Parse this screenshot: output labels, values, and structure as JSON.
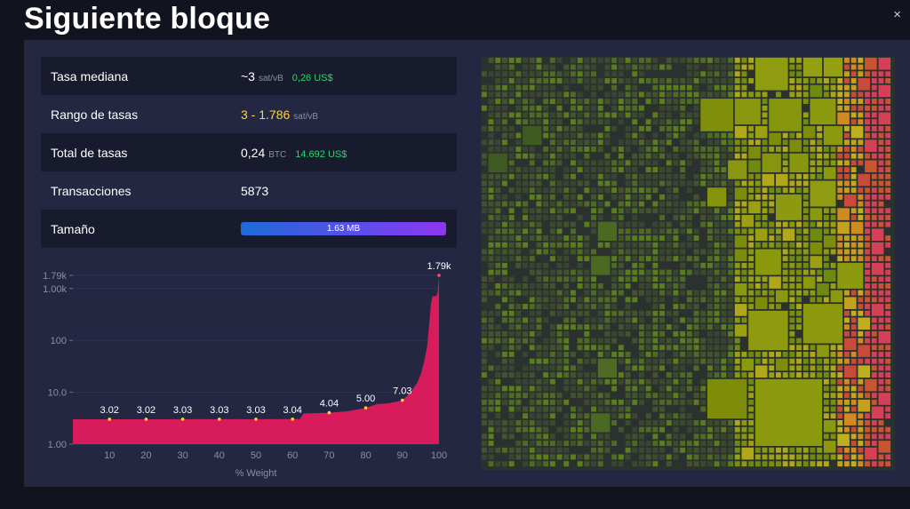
{
  "header": {
    "title": "Siguiente bloque",
    "close_glyph": "×"
  },
  "stats": {
    "median_fee": {
      "label": "Tasa mediana",
      "value": "~3",
      "unit": "sat/vB",
      "fiat": "0,26 US$"
    },
    "fee_range": {
      "label": "Rango de tasas",
      "value": "3 - 1.786",
      "unit": "sat/vB"
    },
    "total_fees": {
      "label": "Total de tasas",
      "value": "0,24",
      "unit": "BTC",
      "fiat": "14.692 US$"
    },
    "transactions": {
      "label": "Transacciones",
      "value": "5873"
    },
    "size": {
      "label": "Tamaño",
      "value": "1.63 MB",
      "fill_fraction": 1.0
    }
  },
  "colors": {
    "panel": "#232741",
    "row_dark": "#181b2e",
    "fiat": "#2bd66b",
    "accent_yellow": "#ffd43b",
    "area": "#d81b5a",
    "treemap_bg": "#2b312f"
  },
  "chart_data": {
    "type": "area",
    "xlabel": "% Weight",
    "ylabel": "",
    "xlim": [
      0,
      100
    ],
    "ylim": [
      1,
      1790
    ],
    "y_scale": "log",
    "x_ticks": [
      10,
      20,
      30,
      40,
      50,
      60,
      70,
      80,
      90,
      100
    ],
    "y_ticks": [
      {
        "value": 1,
        "label": "1.00"
      },
      {
        "value": 10,
        "label": "10.0"
      },
      {
        "value": 100,
        "label": "100"
      },
      {
        "value": 1000,
        "label": "1.00k"
      },
      {
        "value": 1786,
        "label": "1.79k"
      }
    ],
    "annotations": [
      {
        "x": 10,
        "y": 3.02,
        "label": "3.02"
      },
      {
        "x": 20,
        "y": 3.02,
        "label": "3.02"
      },
      {
        "x": 30,
        "y": 3.03,
        "label": "3.03"
      },
      {
        "x": 40,
        "y": 3.03,
        "label": "3.03"
      },
      {
        "x": 50,
        "y": 3.03,
        "label": "3.03"
      },
      {
        "x": 60,
        "y": 3.04,
        "label": "3.04"
      },
      {
        "x": 70,
        "y": 4.04,
        "label": "4.04"
      },
      {
        "x": 80,
        "y": 5.0,
        "label": "5.00"
      },
      {
        "x": 90,
        "y": 7.03,
        "label": "7.03"
      },
      {
        "x": 100,
        "y": 1786,
        "label": "1.79k"
      }
    ],
    "series": [
      {
        "values": [
          [
            0,
            3.02
          ],
          [
            10,
            3.02
          ],
          [
            20,
            3.02
          ],
          [
            30,
            3.03
          ],
          [
            40,
            3.03
          ],
          [
            50,
            3.03
          ],
          [
            60,
            3.04
          ],
          [
            62,
            3.04
          ],
          [
            63,
            3.9
          ],
          [
            70,
            4.04
          ],
          [
            75,
            4.3
          ],
          [
            80,
            5.0
          ],
          [
            83,
            5.9
          ],
          [
            86,
            6.1
          ],
          [
            88,
            6.5
          ],
          [
            90,
            7.03
          ],
          [
            92,
            9.5
          ],
          [
            94,
            15
          ],
          [
            95,
            22
          ],
          [
            96,
            40
          ],
          [
            96.8,
            80
          ],
          [
            97.3,
            200
          ],
          [
            97.8,
            500
          ],
          [
            98.2,
            700
          ],
          [
            99.2,
            720
          ],
          [
            99.6,
            800
          ],
          [
            100,
            1786
          ]
        ]
      }
    ],
    "grid": true
  }
}
